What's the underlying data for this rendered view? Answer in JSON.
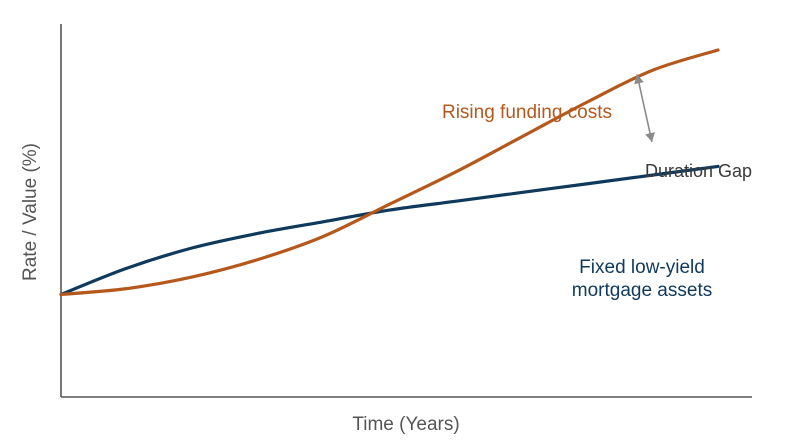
{
  "chart_data": {
    "type": "line",
    "xlabel": "Time (Years)",
    "ylabel": "Rate / Value (%)",
    "xlim": [
      0,
      10
    ],
    "ylim": [
      0,
      10
    ],
    "grid": false,
    "series": [
      {
        "name": "Fixed low-yield mortgage assets",
        "label_lines": [
          "Fixed low-yield",
          "mortgage assets"
        ],
        "color": "#0f3a5c",
        "x": [
          0,
          1,
          2,
          3,
          4,
          5,
          6,
          7,
          8,
          9,
          10
        ],
        "y": [
          1.6,
          2.5,
          3.2,
          3.7,
          4.1,
          4.5,
          4.8,
          5.1,
          5.4,
          5.7,
          6.0
        ]
      },
      {
        "name": "Rising funding costs",
        "label_lines": [
          "Rising funding costs"
        ],
        "color": "#b5581c",
        "x": [
          0,
          1,
          2,
          3,
          4,
          5,
          6,
          7,
          8,
          9,
          10
        ],
        "y": [
          1.6,
          1.8,
          2.2,
          2.8,
          3.6,
          4.7,
          5.8,
          7.0,
          8.2,
          9.3,
          10.0
        ]
      }
    ],
    "annotations": [
      {
        "text": "Duration Gap",
        "x": 8.6,
        "y_from": 6.7,
        "y_to": 9.3
      }
    ]
  }
}
